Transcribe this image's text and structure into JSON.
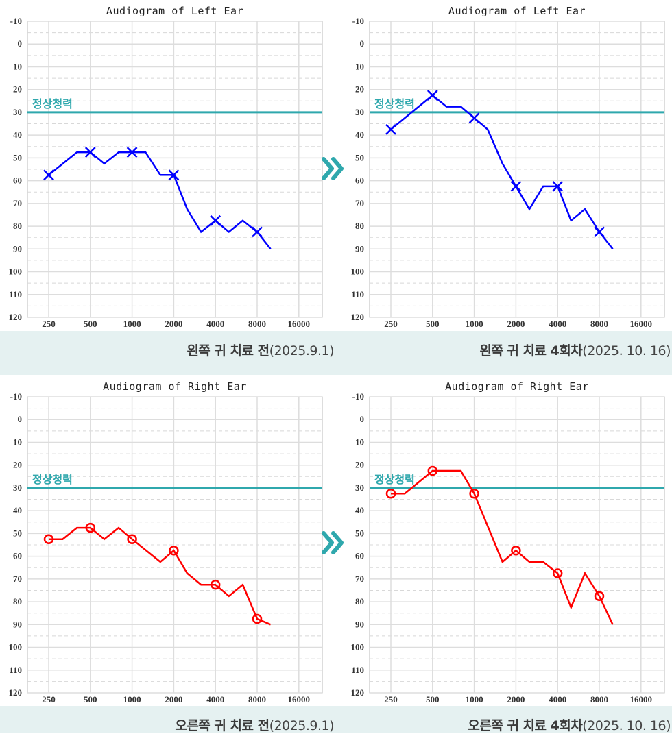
{
  "normal_label": "정상청력",
  "chart_data": [
    {
      "type": "line",
      "title": "Audiogram of Left Ear",
      "ear": "left",
      "marker": "x",
      "color": "#0000ff",
      "x_scale": "log",
      "x_ticks": [
        "250",
        "500",
        "1000",
        "2000",
        "4000",
        "8000",
        "16000"
      ],
      "y_ticks": [
        "-10",
        "0",
        "10",
        "20",
        "30",
        "40",
        "50",
        "60",
        "70",
        "80",
        "90",
        "100",
        "110",
        "120"
      ],
      "ylim": [
        -10,
        120
      ],
      "y_inverted": true,
      "grid": true,
      "normal_threshold": 30,
      "x": [
        250,
        400,
        500,
        630,
        800,
        1000,
        1250,
        1600,
        2000,
        2500,
        3150,
        4000,
        5000,
        6300,
        8000,
        10000
      ],
      "y": [
        57.5,
        47.5,
        47.5,
        52.5,
        47.5,
        47.5,
        47.5,
        57.5,
        57.5,
        72.5,
        82.5,
        77.5,
        82.5,
        77.5,
        82.5,
        90
      ],
      "marked_x": [
        250,
        500,
        1000,
        2000,
        4000,
        8000
      ],
      "caption_bold": "왼쪽 귀 치료 전",
      "caption_rest": "(2025.9.1)"
    },
    {
      "type": "line",
      "title": "Audiogram of Left Ear",
      "ear": "left",
      "marker": "x",
      "color": "#0000ff",
      "x_scale": "log",
      "x_ticks": [
        "250",
        "500",
        "1000",
        "2000",
        "4000",
        "8000",
        "16000"
      ],
      "y_ticks": [
        "-10",
        "0",
        "10",
        "20",
        "30",
        "40",
        "50",
        "60",
        "70",
        "80",
        "90",
        "100",
        "110",
        "120"
      ],
      "ylim": [
        -10,
        120
      ],
      "y_inverted": true,
      "grid": true,
      "normal_threshold": 30,
      "x": [
        250,
        500,
        630,
        800,
        1000,
        1250,
        1600,
        2000,
        2500,
        3150,
        4000,
        5000,
        6300,
        8000,
        10000
      ],
      "y": [
        37.5,
        22.5,
        27.5,
        27.5,
        32.5,
        37.5,
        52.5,
        62.5,
        72.5,
        62.5,
        62.5,
        77.5,
        72.5,
        82.5,
        90
      ],
      "marked_x": [
        250,
        500,
        1000,
        2000,
        4000,
        8000
      ],
      "caption_bold": "왼쪽 귀 치료 4회차",
      "caption_rest": "(2025. 10. 16)"
    },
    {
      "type": "line",
      "title": "Audiogram of Right Ear",
      "ear": "right",
      "marker": "o",
      "color": "#ff0000",
      "x_scale": "log",
      "x_ticks": [
        "250",
        "500",
        "1000",
        "2000",
        "4000",
        "8000",
        "16000"
      ],
      "y_ticks": [
        "-10",
        "0",
        "10",
        "20",
        "30",
        "40",
        "50",
        "60",
        "70",
        "80",
        "90",
        "100",
        "110",
        "120"
      ],
      "ylim": [
        -10,
        120
      ],
      "y_inverted": true,
      "grid": true,
      "normal_threshold": 30,
      "x": [
        250,
        315,
        400,
        500,
        630,
        800,
        1000,
        1600,
        2000,
        2500,
        3150,
        4000,
        5000,
        6300,
        8000,
        10000
      ],
      "y": [
        52.5,
        52.5,
        47.5,
        47.5,
        52.5,
        47.5,
        52.5,
        62.5,
        57.5,
        67.5,
        72.5,
        72.5,
        77.5,
        72.5,
        87.5,
        90
      ],
      "marked_x": [
        250,
        500,
        1000,
        2000,
        4000,
        8000
      ],
      "caption_bold": "오른쪽 귀 치료 전",
      "caption_rest": "(2025.9.1)"
    },
    {
      "type": "line",
      "title": "Audiogram of Right Ear",
      "ear": "right",
      "marker": "o",
      "color": "#ff0000",
      "x_scale": "log",
      "x_ticks": [
        "250",
        "500",
        "1000",
        "2000",
        "4000",
        "8000",
        "16000"
      ],
      "y_ticks": [
        "-10",
        "0",
        "10",
        "20",
        "30",
        "40",
        "50",
        "60",
        "70",
        "80",
        "90",
        "100",
        "110",
        "120"
      ],
      "ylim": [
        -10,
        120
      ],
      "y_inverted": true,
      "grid": true,
      "normal_threshold": 30,
      "x": [
        250,
        315,
        500,
        800,
        1000,
        1600,
        2000,
        2500,
        3150,
        4000,
        5000,
        6300,
        8000,
        10000
      ],
      "y": [
        32.5,
        32.5,
        22.5,
        22.5,
        32.5,
        62.5,
        57.5,
        62.5,
        62.5,
        67.5,
        82.5,
        67.5,
        77.5,
        90
      ],
      "marked_x": [
        250,
        500,
        1000,
        2000,
        4000,
        8000
      ],
      "caption_bold": "오른쪽 귀 치료 4회차",
      "caption_rest": "(2025. 10. 16)"
    }
  ],
  "colors": {
    "normal_line": "#2fa8ad",
    "band": "#e5f1f1",
    "arrow": "#2fa8ad"
  }
}
